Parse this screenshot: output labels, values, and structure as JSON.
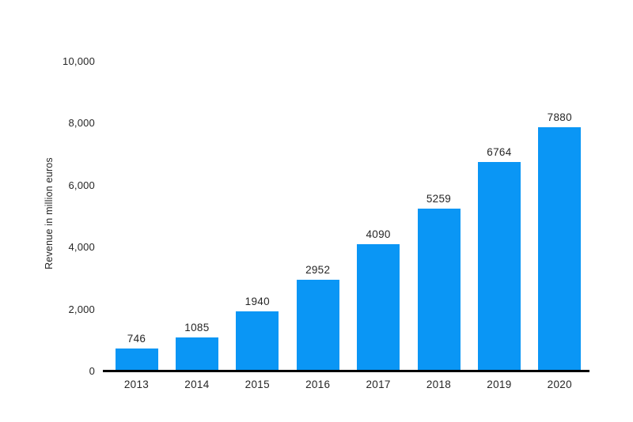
{
  "chart_data": {
    "type": "bar",
    "title": "",
    "categories": [
      "2013",
      "2014",
      "2015",
      "2016",
      "2017",
      "2018",
      "2019",
      "2020"
    ],
    "values": [
      746,
      1085,
      1940,
      2952,
      4090,
      5259,
      6764,
      7880
    ],
    "value_labels": [
      "746",
      "1085",
      "1940",
      "2952",
      "4090",
      "5259",
      "6764",
      "7880"
    ],
    "xlabel": "",
    "ylabel": "Revenue in million euros",
    "ylim": [
      0,
      10000
    ],
    "yticks": [
      {
        "value": 0,
        "label": "0"
      },
      {
        "value": 2000,
        "label": "2,000"
      },
      {
        "value": 4000,
        "label": "4,000"
      },
      {
        "value": 6000,
        "label": "6,000"
      },
      {
        "value": 8000,
        "label": "8,000"
      },
      {
        "value": 10000,
        "label": "10,000"
      }
    ],
    "grid": false,
    "legend": false,
    "show_value_labels": true,
    "bar_color": "#0a96f5",
    "axis_color": "#000000",
    "text_color": "#262626"
  }
}
